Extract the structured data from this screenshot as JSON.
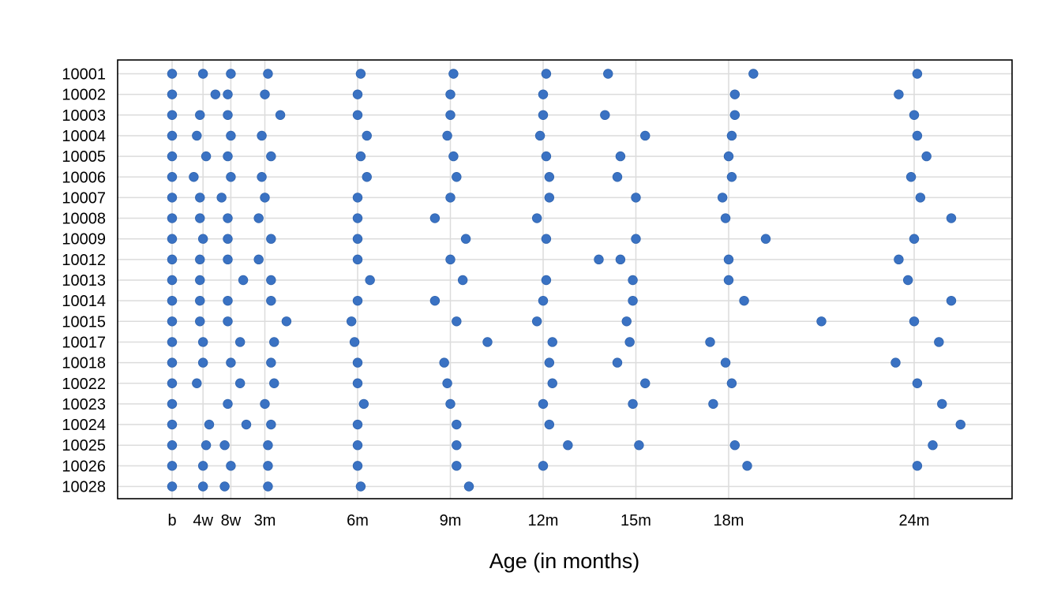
{
  "chart_data": {
    "type": "scatter",
    "title": "",
    "xlabel": "Age (in months)",
    "ylabel": "",
    "xlim": [
      -2.1,
      27.1
    ],
    "grid": true,
    "legend": "none",
    "point_color": "#3a72c3",
    "grid_color": "#dcdcdc",
    "x_ticks": [
      {
        "label": "b",
        "value": 0
      },
      {
        "label": "4w",
        "value": 1
      },
      {
        "label": "8w",
        "value": 1.9
      },
      {
        "label": "3m",
        "value": 3
      },
      {
        "label": "6m",
        "value": 6
      },
      {
        "label": "9m",
        "value": 9
      },
      {
        "label": "12m",
        "value": 12
      },
      {
        "label": "15m",
        "value": 15
      },
      {
        "label": "18m",
        "value": 18
      },
      {
        "label": "24m",
        "value": 24
      }
    ],
    "subjects": [
      {
        "id": "10001",
        "ages": [
          0,
          1.0,
          1.9,
          3.1,
          6.1,
          9.1,
          12.1,
          14.1,
          18.8,
          24.1
        ]
      },
      {
        "id": "10002",
        "ages": [
          0,
          1.4,
          1.8,
          3.0,
          6.0,
          9.0,
          12.0,
          18.2,
          23.5
        ]
      },
      {
        "id": "10003",
        "ages": [
          0,
          0.9,
          1.8,
          3.5,
          6.0,
          9.0,
          12.0,
          14.0,
          18.2,
          24.0
        ]
      },
      {
        "id": "10004",
        "ages": [
          0,
          0.8,
          1.9,
          2.9,
          6.3,
          8.9,
          11.9,
          15.3,
          18.1,
          24.1
        ]
      },
      {
        "id": "10005",
        "ages": [
          0,
          1.1,
          1.8,
          3.2,
          6.1,
          9.1,
          12.1,
          14.5,
          18.0,
          24.4
        ]
      },
      {
        "id": "10006",
        "ages": [
          0,
          0.7,
          1.9,
          2.9,
          6.3,
          9.2,
          12.2,
          14.4,
          18.1,
          23.9
        ]
      },
      {
        "id": "10007",
        "ages": [
          0,
          0.9,
          1.6,
          3.0,
          6.0,
          9.0,
          12.2,
          15.0,
          17.8,
          24.2
        ]
      },
      {
        "id": "10008",
        "ages": [
          0,
          0.9,
          1.8,
          2.8,
          6.0,
          8.5,
          11.8,
          17.9,
          25.2
        ]
      },
      {
        "id": "10009",
        "ages": [
          0,
          1.0,
          1.8,
          3.2,
          6.0,
          9.5,
          12.1,
          15.0,
          19.2,
          24.0
        ]
      },
      {
        "id": "10012",
        "ages": [
          0,
          0.9,
          1.8,
          2.8,
          6.0,
          9.0,
          13.8,
          14.5,
          18.0,
          23.5
        ]
      },
      {
        "id": "10013",
        "ages": [
          0,
          0.9,
          2.3,
          3.2,
          6.4,
          9.4,
          12.1,
          14.9,
          18.0,
          23.8
        ]
      },
      {
        "id": "10014",
        "ages": [
          0,
          0.9,
          1.8,
          3.2,
          6.0,
          8.5,
          12.0,
          14.9,
          18.5,
          25.2
        ]
      },
      {
        "id": "10015",
        "ages": [
          0,
          0.9,
          1.8,
          3.7,
          5.8,
          9.2,
          11.8,
          14.7,
          21.0,
          24.0
        ]
      },
      {
        "id": "10017",
        "ages": [
          0,
          1.0,
          2.2,
          3.3,
          5.9,
          10.2,
          12.3,
          14.8,
          17.4,
          24.8
        ]
      },
      {
        "id": "10018",
        "ages": [
          0,
          1.0,
          1.9,
          3.2,
          6.0,
          8.8,
          12.2,
          14.4,
          17.9,
          23.4
        ]
      },
      {
        "id": "10022",
        "ages": [
          0,
          0.8,
          2.2,
          3.3,
          6.0,
          8.9,
          12.3,
          15.3,
          18.1,
          24.1
        ]
      },
      {
        "id": "10023",
        "ages": [
          0,
          1.8,
          3.0,
          6.2,
          9.0,
          12.0,
          14.9,
          17.5,
          24.9
        ]
      },
      {
        "id": "10024",
        "ages": [
          0,
          1.2,
          2.4,
          3.2,
          6.0,
          9.2,
          12.2,
          25.5
        ]
      },
      {
        "id": "10025",
        "ages": [
          0,
          1.1,
          1.7,
          3.1,
          6.0,
          9.2,
          12.8,
          15.1,
          18.2,
          24.6
        ]
      },
      {
        "id": "10026",
        "ages": [
          0,
          1.0,
          1.9,
          3.1,
          6.0,
          9.2,
          12.0,
          18.6,
          24.1
        ]
      },
      {
        "id": "10028",
        "ages": [
          0,
          1.0,
          1.7,
          3.1,
          6.1,
          9.6
        ]
      }
    ]
  }
}
